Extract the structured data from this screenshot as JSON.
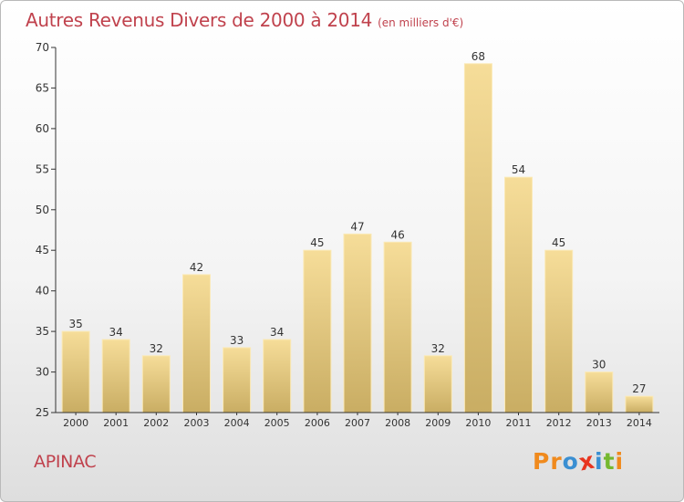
{
  "title": "Autres Revenus Divers de 2000 à 2014",
  "unit_note": "(en milliers d'€)",
  "place": "APINAC",
  "logo": {
    "letters": [
      "P",
      "r",
      "o",
      "x",
      "i",
      "t",
      "i"
    ],
    "colors": [
      "#f08a1d",
      "#f08a1d",
      "#3a8fd2",
      "#e8351f",
      "#3a8fd2",
      "#75b82f",
      "#f08a1d"
    ]
  },
  "colors": {
    "title": "#c0424d",
    "bar_light": "#f6dd99",
    "bar_dark": "#c9ad63",
    "bar_edge": "#fbe9b6",
    "axis": "#333333"
  },
  "chart_data": {
    "type": "bar",
    "categories": [
      "2000",
      "2001",
      "2002",
      "2003",
      "2004",
      "2005",
      "2006",
      "2007",
      "2008",
      "2009",
      "2010",
      "2011",
      "2012",
      "2013",
      "2014"
    ],
    "values": [
      35,
      34,
      32,
      42,
      33,
      34,
      45,
      47,
      46,
      32,
      68,
      54,
      45,
      30,
      27
    ],
    "yticks": [
      25,
      30,
      35,
      40,
      45,
      50,
      55,
      60,
      65,
      70
    ],
    "ylim": [
      25,
      70
    ],
    "grid": false,
    "data_labels": true
  }
}
